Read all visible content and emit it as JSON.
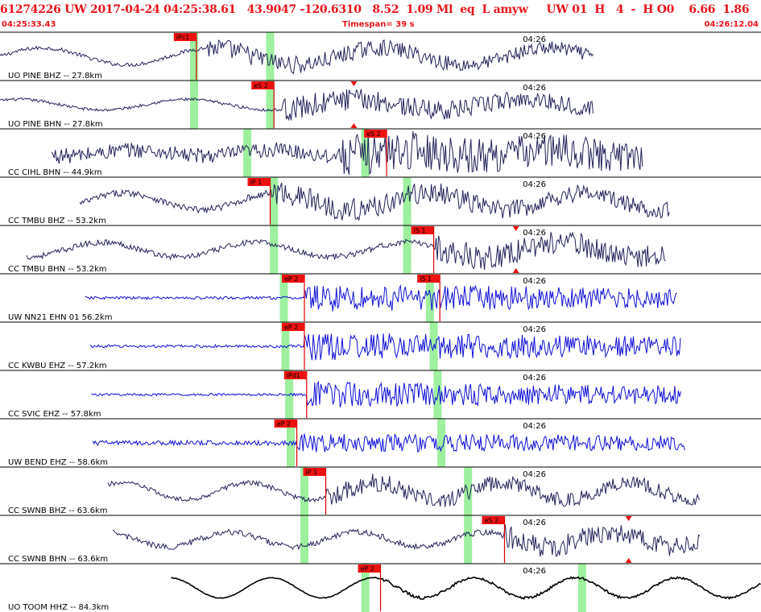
{
  "header": {
    "event_line": "61274226 UW 2017-04-24 04:25:38.61   43.9047 -120.6310   8.52  1.09 Ml  eq  L amyw     UW 01  H   4  -  H O0    6.66  1.86",
    "start_time": "04:25:33.43",
    "timespan": "Timespan=  39 s",
    "end_time": "04:26:12.04"
  },
  "colors": {
    "header_text": "#e8141a",
    "pick_box": "#ee1111",
    "pick_line": "#dd0000",
    "window_highlight": "#9ef09e",
    "trace_navy": "#22225a",
    "trace_blue": "#1010d8",
    "trace_black": "#000000",
    "divider": "#000000"
  },
  "time_tick_label": "04:26",
  "traces": [
    {
      "label": "UO PINE BHZ -- 27.8km",
      "color": "navy",
      "start": 0.0,
      "end": 0.78,
      "noise": 0.08,
      "long_amp": 0.35,
      "long_freq": 4.5,
      "onset": 0.27,
      "onset_amp": 0.35,
      "coda_decay": 0.9,
      "green": [
        0.255,
        0.355
      ],
      "picks": [
        {
          "label": "iPc1",
          "pos": 0.258
        }
      ],
      "markers": [],
      "tick": 0.706
    },
    {
      "label": "UO PINE BHN -- 27.8km",
      "color": "navy",
      "start": 0.0,
      "end": 0.78,
      "noise": 0.06,
      "long_amp": 0.22,
      "long_freq": 4.5,
      "onset": 0.37,
      "onset_amp": 0.45,
      "coda_decay": 0.9,
      "green": [
        0.255,
        0.355
      ],
      "picks": [
        {
          "label": "eS 2",
          "pos": 0.36
        }
      ],
      "markers": [
        0.465
      ],
      "tick": 0.706
    },
    {
      "label": "CC CIHL BHN -- 44.9km",
      "color": "navy",
      "start": 0.068,
      "end": 0.845,
      "noise": 0.32,
      "long_amp": 0.12,
      "long_freq": 5.5,
      "onset": 0.45,
      "onset_amp": 0.55,
      "coda_decay": 1.0,
      "green": [
        0.325,
        0.48
      ],
      "picks": [
        {
          "label": "eS 2",
          "pos": 0.508
        }
      ],
      "markers": [],
      "tick": 0.706
    },
    {
      "label": "CC TMBU BHZ -- 53.2km",
      "color": "navy",
      "start": 0.105,
      "end": 0.88,
      "noise": 0.14,
      "long_amp": 0.35,
      "long_freq": 5.0,
      "onset": 0.355,
      "onset_amp": 0.38,
      "coda_decay": 0.8,
      "green": [
        0.36,
        0.535
      ],
      "picks": [
        {
          "label": "iP 1",
          "pos": 0.355
        }
      ],
      "markers": [],
      "tick": 0.706
    },
    {
      "label": "CC TMBU BHN -- 53.2km",
      "color": "navy",
      "start": 0.035,
      "end": 0.875,
      "noise": 0.12,
      "long_amp": 0.3,
      "long_freq": 5.0,
      "onset": 0.57,
      "onset_amp": 0.45,
      "coda_decay": 0.8,
      "green": [
        0.36,
        0.535
      ],
      "picks": [
        {
          "label": "iS 1",
          "pos": 0.57
        }
      ],
      "markers": [
        0.678
      ],
      "tick": 0.706
    },
    {
      "label": "UW NN21 EHN 01 56.2km",
      "color": "blue",
      "start": 0.112,
      "end": 0.89,
      "noise": 0.06,
      "long_amp": 0.0,
      "long_freq": 1.0,
      "onset": 0.4,
      "onset_amp": 0.55,
      "coda_decay": 0.6,
      "green": [
        0.373,
        0.565
      ],
      "picks": [
        {
          "label": "eP 2",
          "pos": 0.4
        },
        {
          "label": "iS 1",
          "pos": 0.578
        }
      ],
      "markers": [],
      "tick": 0.706
    },
    {
      "label": "CC KWBU EHZ -- 57.2km",
      "color": "blue",
      "start": 0.118,
      "end": 0.895,
      "noise": 0.06,
      "long_amp": 0.0,
      "long_freq": 1.0,
      "onset": 0.4,
      "onset_amp": 0.55,
      "coda_decay": 0.6,
      "green": [
        0.375,
        0.57
      ],
      "picks": [
        {
          "label": "eP 2",
          "pos": 0.4
        }
      ],
      "markers": [],
      "tick": 0.706
    },
    {
      "label": "CC SVIC EHZ -- 57.8km",
      "color": "blue",
      "start": 0.12,
      "end": 0.895,
      "noise": 0.05,
      "long_amp": 0.0,
      "long_freq": 1.0,
      "onset": 0.403,
      "onset_amp": 0.5,
      "coda_decay": 0.6,
      "green": [
        0.38,
        0.575
      ],
      "picks": [
        {
          "label": "iPd1",
          "pos": 0.403
        }
      ],
      "markers": [],
      "tick": 0.706
    },
    {
      "label": "UW BEND EHZ -- 58.6km",
      "color": "blue",
      "start": 0.122,
      "end": 0.9,
      "noise": 0.1,
      "long_amp": 0.0,
      "long_freq": 1.0,
      "onset": 0.39,
      "onset_amp": 0.3,
      "coda_decay": 0.4,
      "green": [
        0.382,
        0.58
      ],
      "picks": [
        {
          "label": "eP 2",
          "pos": 0.39
        }
      ],
      "markers": [],
      "tick": 0.706
    },
    {
      "label": "CC SWNB BHZ -- 63.6km",
      "color": "navy",
      "start": 0.142,
      "end": 0.92,
      "noise": 0.1,
      "long_amp": 0.35,
      "long_freq": 6.0,
      "onset": 0.428,
      "onset_amp": 0.3,
      "coda_decay": 0.8,
      "green": [
        0.4,
        0.615
      ],
      "picks": [
        {
          "label": "iP 1",
          "pos": 0.428
        }
      ],
      "markers": [],
      "tick": 0.706
    },
    {
      "label": "CC SWNB BHN -- 63.6km",
      "color": "navy",
      "start": 0.148,
      "end": 0.92,
      "noise": 0.12,
      "long_amp": 0.3,
      "long_freq": 6.0,
      "onset": 0.663,
      "onset_amp": 0.35,
      "coda_decay": 0.8,
      "green": [
        0.4,
        0.615
      ],
      "picks": [
        {
          "label": "eS 2",
          "pos": 0.663
        }
      ],
      "markers": [
        0.826
      ],
      "tick": 0.706
    },
    {
      "label": "UO TOOM HHZ -- 84.3km",
      "color": "black",
      "start": 0.225,
      "end": 1.0,
      "noise": 0.015,
      "long_amp": 0.42,
      "long_freq": 7.5,
      "onset": 0.5,
      "onset_amp": 0.05,
      "coda_decay": 1.0,
      "green": [
        0.48,
        0.765
      ],
      "picks": [
        {
          "label": "eP 2",
          "pos": 0.5
        }
      ],
      "markers": [],
      "tick": 0.706
    }
  ]
}
